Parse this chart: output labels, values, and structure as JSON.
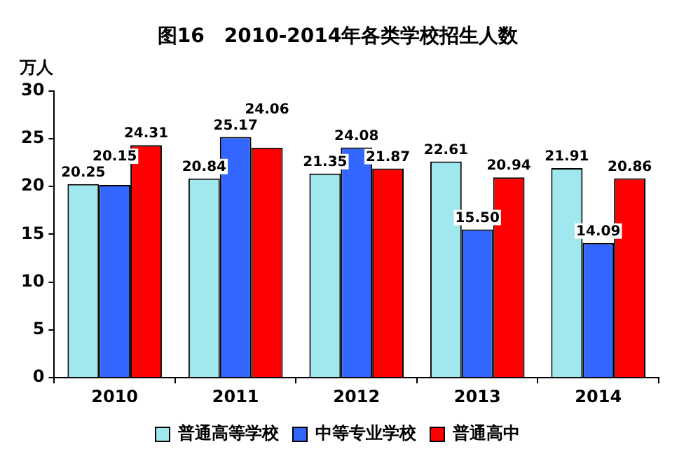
{
  "chart_data": {
    "type": "bar",
    "title": "图16　2010-2014年各类学校招生人数",
    "ylabel": "万人",
    "categories": [
      "2010",
      "2011",
      "2012",
      "2013",
      "2014"
    ],
    "series": [
      {
        "name": "普通高等学校",
        "color": "#9ee8ee",
        "values": [
          20.25,
          20.84,
          21.35,
          22.61,
          21.91
        ]
      },
      {
        "name": "中等专业学校",
        "color": "#3366ff",
        "values": [
          20.15,
          25.17,
          24.08,
          15.5,
          14.09
        ],
        "value_labels": [
          "20.15",
          "25.17",
          "24.08",
          "15.50",
          "14.09"
        ]
      },
      {
        "name": "普通高中",
        "color": "#ff0000",
        "values": [
          24.31,
          24.06,
          21.87,
          20.94,
          20.86
        ]
      }
    ],
    "ylim": [
      0,
      30
    ],
    "yticks": [
      0,
      5,
      10,
      15,
      20,
      25,
      30
    ],
    "grid": false,
    "legend": "bottom",
    "data_labels": true
  }
}
